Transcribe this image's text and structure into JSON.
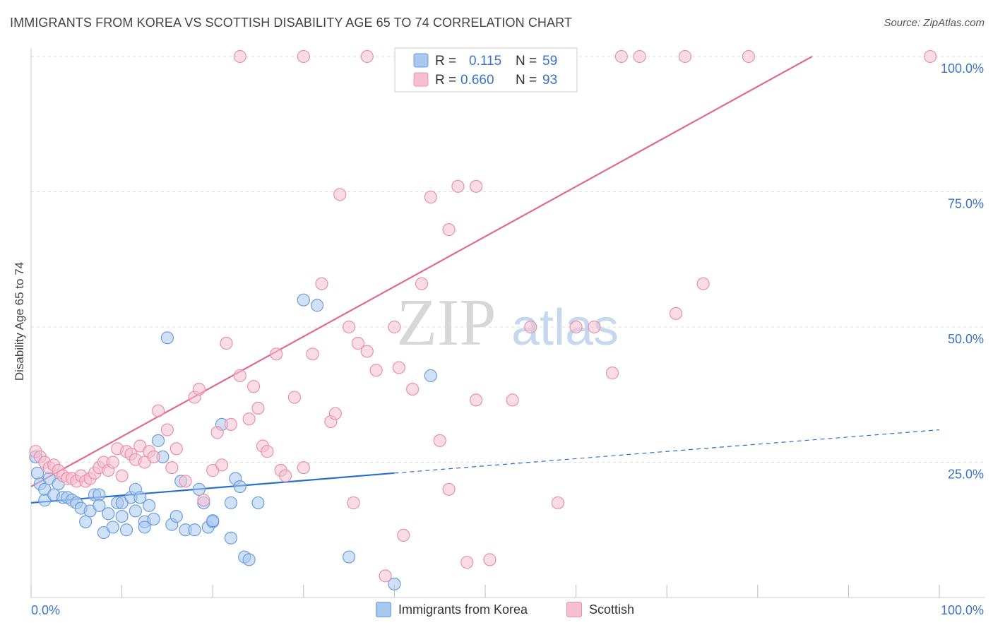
{
  "header": {
    "title": "IMMIGRANTS FROM KOREA VS SCOTTISH DISABILITY AGE 65 TO 74 CORRELATION CHART",
    "source": "Source: ZipAtlas.com"
  },
  "watermark": {
    "zip": "ZIP",
    "atlas": "atlas"
  },
  "colors": {
    "blue_fill": "#a9c8ef",
    "blue_stroke": "#6a9de0",
    "blue_line": "#2a6fd0",
    "pink_fill": "#f6bfd0",
    "pink_stroke": "#e890ac",
    "pink_line": "#e26890",
    "tick_label": "#3a73c8",
    "grid": "#dddddd"
  },
  "chart_data": {
    "type": "scatter",
    "title": "IMMIGRANTS FROM KOREA VS SCOTTISH DISABILITY AGE 65 TO 74 CORRELATION CHART",
    "xlabel": "",
    "ylabel": "Disability Age 65 to 74",
    "xlim": [
      0,
      100
    ],
    "ylim": [
      0,
      100
    ],
    "x_tick_labels": [
      "0.0%",
      "100.0%"
    ],
    "y_tick_labels": [
      "25.0%",
      "50.0%",
      "75.0%",
      "100.0%"
    ],
    "y_ticks": [
      25,
      50,
      75,
      100
    ],
    "grid": true,
    "legend_position": "top-center",
    "stats": [
      {
        "r_label": "R =",
        "r_value": "0.115",
        "n_label": "N =",
        "n_value": "59"
      },
      {
        "r_label": "R =",
        "r_value": "0.660",
        "n_label": "N =",
        "n_value": "93"
      }
    ],
    "series": [
      {
        "name": "Immigrants from Korea",
        "color": "#a9c8ef",
        "trend": {
          "x0": 0,
          "y0": 17.5,
          "x1": 40,
          "y1": 23,
          "dashed_to_x": 100,
          "dashed_to_y": 31
        },
        "points": [
          [
            0.5,
            26
          ],
          [
            0.7,
            23
          ],
          [
            1,
            21
          ],
          [
            1.5,
            20
          ],
          [
            1.5,
            18
          ],
          [
            2,
            22
          ],
          [
            2.5,
            19
          ],
          [
            3,
            21
          ],
          [
            3.5,
            18.5
          ],
          [
            4,
            18.5
          ],
          [
            4.5,
            18
          ],
          [
            5,
            17.5
          ],
          [
            5.5,
            16.5
          ],
          [
            6,
            14
          ],
          [
            6.5,
            16
          ],
          [
            7,
            19
          ],
          [
            7.5,
            19
          ],
          [
            7.5,
            17
          ],
          [
            8,
            12
          ],
          [
            8.5,
            15.5
          ],
          [
            9,
            13
          ],
          [
            9.5,
            17.5
          ],
          [
            10,
            17.5
          ],
          [
            10,
            15
          ],
          [
            10.5,
            12.5
          ],
          [
            11,
            18.5
          ],
          [
            11.5,
            20
          ],
          [
            11.5,
            16
          ],
          [
            12,
            18.5
          ],
          [
            12.5,
            14
          ],
          [
            12.5,
            13
          ],
          [
            13,
            17
          ],
          [
            13.5,
            14.5
          ],
          [
            14,
            29
          ],
          [
            14.5,
            26
          ],
          [
            15,
            48
          ],
          [
            15.5,
            13.5
          ],
          [
            16,
            15
          ],
          [
            16.5,
            21.5
          ],
          [
            17,
            12.5
          ],
          [
            18,
            12.5
          ],
          [
            18.5,
            20
          ],
          [
            19,
            17.5
          ],
          [
            19.5,
            13
          ],
          [
            20,
            14
          ],
          [
            20,
            14.2
          ],
          [
            21,
            32
          ],
          [
            22,
            11
          ],
          [
            22,
            17.5
          ],
          [
            22.5,
            22
          ],
          [
            23,
            20.5
          ],
          [
            23.5,
            7.5
          ],
          [
            24,
            7
          ],
          [
            25,
            17.5
          ],
          [
            30,
            55
          ],
          [
            44,
            41
          ],
          [
            31.5,
            54
          ],
          [
            35,
            7.5
          ],
          [
            40,
            2.5
          ]
        ]
      },
      {
        "name": "Scottish",
        "color": "#f6bfd0",
        "trend": {
          "x0": 0,
          "y0": 20.5,
          "x1": 86,
          "y1": 100
        },
        "points": [
          [
            0.5,
            27
          ],
          [
            1,
            26
          ],
          [
            1.5,
            25
          ],
          [
            2,
            24
          ],
          [
            2.5,
            24.5
          ],
          [
            3,
            23.5
          ],
          [
            3.5,
            22.5
          ],
          [
            4,
            22
          ],
          [
            4.5,
            22
          ],
          [
            5,
            21.5
          ],
          [
            5.5,
            22.5
          ],
          [
            6,
            21.5
          ],
          [
            6.5,
            22
          ],
          [
            7,
            23
          ],
          [
            7.5,
            24
          ],
          [
            8,
            25
          ],
          [
            8.5,
            23.5
          ],
          [
            9,
            25
          ],
          [
            9.5,
            27.5
          ],
          [
            10,
            22.5
          ],
          [
            10.5,
            27
          ],
          [
            11,
            26.5
          ],
          [
            11.5,
            25.5
          ],
          [
            12,
            28
          ],
          [
            12.5,
            25
          ],
          [
            13,
            27
          ],
          [
            13.5,
            26
          ],
          [
            14,
            34.5
          ],
          [
            15,
            31
          ],
          [
            15.5,
            24
          ],
          [
            16,
            27.5
          ],
          [
            17,
            21.5
          ],
          [
            18,
            37
          ],
          [
            18.5,
            38.5
          ],
          [
            19,
            18
          ],
          [
            20,
            23.5
          ],
          [
            20.5,
            30.5
          ],
          [
            21,
            24.5
          ],
          [
            21.5,
            47
          ],
          [
            22,
            32
          ],
          [
            23,
            41
          ],
          [
            24,
            33
          ],
          [
            24.5,
            39
          ],
          [
            25,
            35
          ],
          [
            25.5,
            28
          ],
          [
            26,
            27
          ],
          [
            27,
            45
          ],
          [
            27.5,
            23.5
          ],
          [
            28,
            22.5
          ],
          [
            29,
            37
          ],
          [
            30,
            24
          ],
          [
            31,
            45
          ],
          [
            32,
            58
          ],
          [
            33,
            32.5
          ],
          [
            33.5,
            34
          ],
          [
            34,
            74.5
          ],
          [
            35,
            50
          ],
          [
            35.5,
            17.5
          ],
          [
            36,
            47
          ],
          [
            37,
            45.5
          ],
          [
            38,
            42
          ],
          [
            39,
            4
          ],
          [
            40,
            50
          ],
          [
            40.5,
            42.5
          ],
          [
            41,
            11.5
          ],
          [
            42,
            38.5
          ],
          [
            43,
            58
          ],
          [
            44,
            74
          ],
          [
            45,
            29
          ],
          [
            46,
            20
          ],
          [
            46,
            68
          ],
          [
            47,
            76
          ],
          [
            48,
            6.5
          ],
          [
            49,
            76
          ],
          [
            49,
            36.5
          ],
          [
            50.5,
            7
          ],
          [
            52,
            100
          ],
          [
            53,
            36.5
          ],
          [
            55,
            50
          ],
          [
            58,
            17.5
          ],
          [
            60,
            50
          ],
          [
            62,
            50
          ],
          [
            64,
            41.5
          ],
          [
            65,
            100
          ],
          [
            67,
            100
          ],
          [
            71,
            52.5
          ],
          [
            74,
            58
          ],
          [
            99,
            100
          ],
          [
            23,
            100
          ],
          [
            30,
            100
          ],
          [
            37,
            100
          ],
          [
            72,
            100
          ],
          [
            79,
            100
          ]
        ]
      }
    ]
  },
  "bottom_legend": {
    "items": [
      {
        "label": "Immigrants from Korea"
      },
      {
        "label": "Scottish"
      }
    ]
  }
}
